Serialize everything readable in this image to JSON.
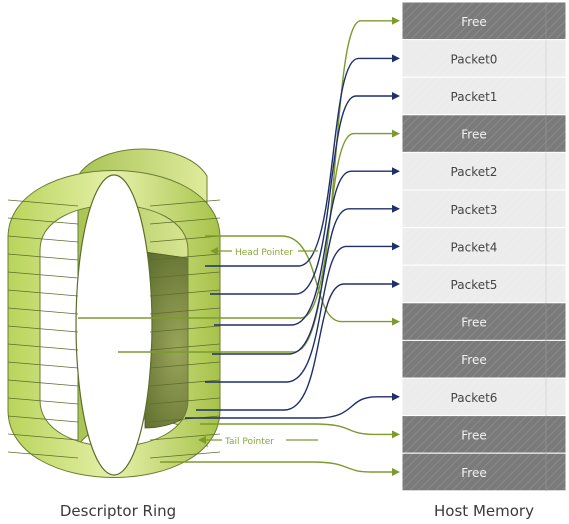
{
  "ring": {
    "caption": "Descriptor Ring",
    "head_pointer": "Head Pointer",
    "tail_pointer": "Tail Pointer"
  },
  "memory": {
    "caption": "Host Memory",
    "blocks": [
      {
        "label": "Free",
        "state": "free"
      },
      {
        "label": "Packet0",
        "state": "packet"
      },
      {
        "label": "Packet1",
        "state": "packet"
      },
      {
        "label": "Free",
        "state": "free"
      },
      {
        "label": "Packet2",
        "state": "packet"
      },
      {
        "label": "Packet3",
        "state": "packet"
      },
      {
        "label": "Packet4",
        "state": "packet"
      },
      {
        "label": "Packet5",
        "state": "packet"
      },
      {
        "label": "Free",
        "state": "free"
      },
      {
        "label": "Free",
        "state": "free"
      },
      {
        "label": "Packet6",
        "state": "packet"
      },
      {
        "label": "Free",
        "state": "free"
      },
      {
        "label": "Free",
        "state": "free"
      }
    ]
  },
  "colors": {
    "ring_light": "#c7dd6c",
    "ring_dark": "#6f7f3f",
    "free_block": "#7a7a7a",
    "packet_block": "#ececec",
    "used_arrow": "#1f2f6b",
    "free_arrow": "#7d9a2d"
  }
}
